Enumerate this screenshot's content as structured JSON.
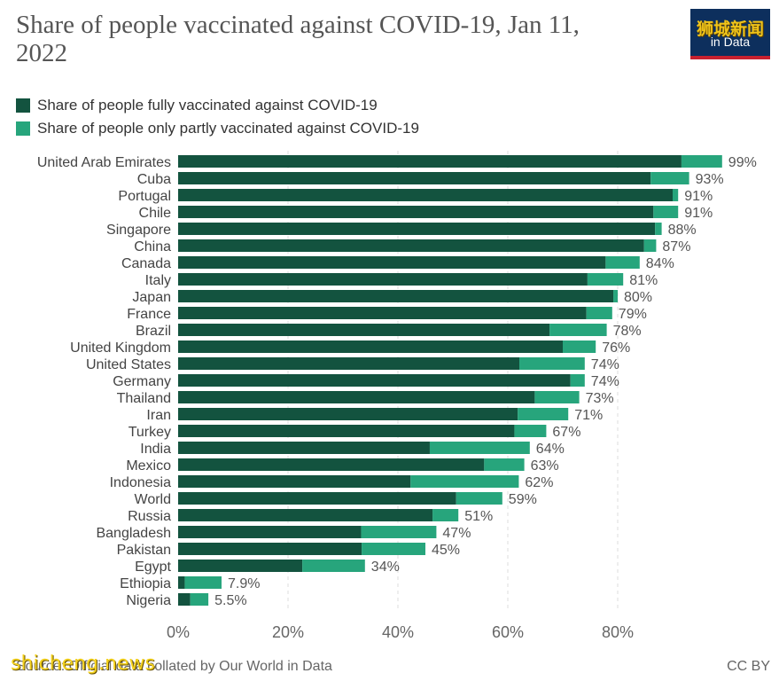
{
  "title": "Share of people vaccinated against COVID-19, Jan 11, 2022",
  "logo": {
    "text": "in Data",
    "overlay": "狮城新闻"
  },
  "watermark": "shicheng.news",
  "footer": {
    "source": "Source: Official data collated by Our World in Data",
    "license": "CC BY"
  },
  "colors": {
    "fully": "#13533f",
    "partly": "#27a57c",
    "grid": "#dddddd",
    "label": "#555555"
  },
  "chart_data": {
    "type": "bar",
    "orientation": "horizontal",
    "stacked": true,
    "title": "Share of people vaccinated against COVID-19, Jan 11, 2022",
    "xlim": [
      0,
      100
    ],
    "x_ticks": [
      0,
      20,
      40,
      60,
      80
    ],
    "x_tick_labels": [
      "0%",
      "20%",
      "40%",
      "60%",
      "80%"
    ],
    "grid": "vertical dashed",
    "legend_position": "top-left",
    "categories": [
      "United Arab Emirates",
      "Cuba",
      "Portugal",
      "Chile",
      "Singapore",
      "China",
      "Canada",
      "Italy",
      "Japan",
      "France",
      "Brazil",
      "United Kingdom",
      "United States",
      "Germany",
      "Thailand",
      "Iran",
      "Turkey",
      "India",
      "Mexico",
      "Indonesia",
      "World",
      "Russia",
      "Bangladesh",
      "Pakistan",
      "Egypt",
      "Ethiopia",
      "Nigeria"
    ],
    "series": [
      {
        "name": "Share of people fully vaccinated against COVID-19",
        "values": [
          91.6,
          86,
          90,
          86.5,
          86.8,
          84.8,
          77.8,
          74.5,
          79.2,
          74.3,
          67.6,
          70,
          62.1,
          71.4,
          64.9,
          61.8,
          61.2,
          45.8,
          55.7,
          42.3,
          50.6,
          46.3,
          33.3,
          33.4,
          22.6,
          1.2,
          2.2
        ]
      },
      {
        "name": "Share of people only partly vaccinated against COVID-19",
        "values": [
          7.4,
          7,
          1,
          4.5,
          1.2,
          2.2,
          6.2,
          6.5,
          0.8,
          4.7,
          10.4,
          6,
          11.9,
          2.6,
          8.1,
          9.2,
          5.8,
          18.2,
          7.3,
          19.7,
          8.4,
          4.7,
          13.7,
          11.6,
          11.4,
          6.7,
          3.3
        ]
      }
    ],
    "totals": [
      99,
      93,
      91,
      91,
      88,
      87,
      84,
      81,
      80,
      79,
      78,
      76,
      74,
      74,
      73,
      71,
      67,
      64,
      63,
      62,
      59,
      51,
      47,
      45,
      34,
      7.9,
      5.5
    ],
    "total_labels": [
      "99%",
      "93%",
      "91%",
      "91%",
      "88%",
      "87%",
      "84%",
      "81%",
      "80%",
      "79%",
      "78%",
      "76%",
      "74%",
      "74%",
      "73%",
      "71%",
      "67%",
      "64%",
      "63%",
      "62%",
      "59%",
      "51%",
      "47%",
      "45%",
      "34%",
      "7.9%",
      "5.5%"
    ]
  }
}
